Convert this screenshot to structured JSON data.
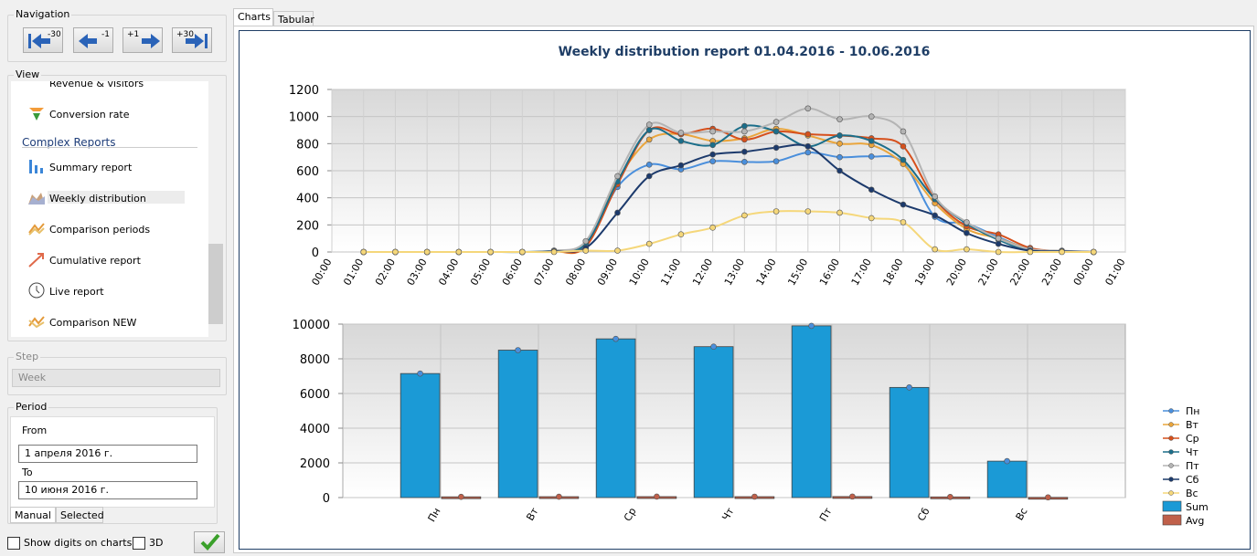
{
  "navigation": {
    "title": "Navigation",
    "buttons": [
      "-30",
      "-1",
      "+1",
      "+30"
    ]
  },
  "view": {
    "title": "View",
    "items": [
      "Revenue & visitors",
      "Conversion rate"
    ],
    "section": "Complex Reports",
    "reports": [
      "Summary report",
      "Weekly distribution",
      "Comparison periods",
      "Cumulative report",
      "Live report",
      "Comparison NEW"
    ]
  },
  "step": {
    "title": "Step",
    "value": "Week"
  },
  "period": {
    "title": "Period",
    "from_label": "From",
    "from": "1  апреля   2016 г.",
    "to_label": "To",
    "to": "10  июня    2016 г.",
    "tabs": [
      "Manual",
      "Selected"
    ]
  },
  "options": [
    "Show digits on charts",
    "3D"
  ],
  "tabs": [
    "Charts",
    "Tabular"
  ],
  "chart_data": [
    {
      "type": "line",
      "title": "Weekly distribution report 01.04.2016 - 10.06.2016",
      "categories": [
        "00:00",
        "01:00",
        "02:00",
        "03:00",
        "04:00",
        "05:00",
        "06:00",
        "07:00",
        "08:00",
        "09:00",
        "10:00",
        "11:00",
        "12:00",
        "13:00",
        "14:00",
        "15:00",
        "16:00",
        "17:00",
        "18:00",
        "19:00",
        "20:00",
        "21:00",
        "22:00",
        "23:00",
        "00:00",
        "01:00"
      ],
      "series": [
        {
          "name": "Пн",
          "color": "#4a8fdc",
          "values": [
            null,
            0,
            0,
            0,
            0,
            0,
            0,
            5,
            50,
            480,
            645,
            610,
            670,
            665,
            670,
            735,
            700,
            705,
            660,
            260,
            210,
            110,
            20,
            5,
            0,
            null
          ]
        },
        {
          "name": "Вт",
          "color": "#eaa53c",
          "values": [
            null,
            0,
            0,
            0,
            0,
            0,
            0,
            5,
            40,
            530,
            830,
            870,
            820,
            840,
            910,
            860,
            800,
            790,
            650,
            360,
            170,
            100,
            20,
            5,
            0,
            null
          ]
        },
        {
          "name": "Ср",
          "color": "#d6501c",
          "values": [
            null,
            0,
            0,
            0,
            0,
            0,
            0,
            5,
            40,
            500,
            900,
            870,
            910,
            830,
            890,
            870,
            860,
            840,
            780,
            390,
            190,
            130,
            30,
            5,
            0,
            null
          ]
        },
        {
          "name": "Чт",
          "color": "#1b6e8a",
          "values": [
            null,
            0,
            0,
            0,
            0,
            0,
            0,
            10,
            60,
            520,
            900,
            820,
            790,
            930,
            890,
            780,
            860,
            820,
            680,
            390,
            210,
            90,
            10,
            5,
            0,
            null
          ]
        },
        {
          "name": "Пт",
          "color": "#b4b4b4",
          "values": [
            null,
            0,
            0,
            0,
            0,
            0,
            0,
            10,
            80,
            560,
            940,
            880,
            890,
            890,
            960,
            1060,
            980,
            1000,
            890,
            410,
            220,
            100,
            20,
            10,
            0,
            null
          ]
        },
        {
          "name": "Сб",
          "color": "#1c3a6c",
          "values": [
            null,
            0,
            0,
            0,
            0,
            0,
            0,
            5,
            30,
            290,
            560,
            640,
            720,
            740,
            770,
            780,
            600,
            460,
            350,
            270,
            140,
            60,
            10,
            5,
            0,
            null
          ]
        },
        {
          "name": "Вс",
          "color": "#f5d77a",
          "values": [
            null,
            0,
            0,
            0,
            0,
            0,
            0,
            0,
            10,
            10,
            60,
            130,
            180,
            270,
            300,
            300,
            290,
            250,
            220,
            20,
            20,
            0,
            0,
            0,
            0,
            null
          ]
        }
      ],
      "ylim": [
        0,
        1200
      ],
      "yticks": [
        0,
        200,
        400,
        600,
        800,
        1000,
        1200
      ],
      "grid": true
    },
    {
      "type": "bar",
      "categories": [
        "Пн",
        "Вт",
        "Ср",
        "Чт",
        "Пт",
        "Сб",
        "Вс"
      ],
      "series": [
        {
          "name": "Sum",
          "color": "#1b9ad6",
          "values": [
            7150,
            8500,
            9150,
            8700,
            9900,
            6350,
            2100
          ]
        },
        {
          "name": "Avg",
          "color": "#c0604a",
          "values": [
            43,
            51,
            54,
            52,
            59,
            38,
            13
          ]
        }
      ],
      "ylim": [
        0,
        10000
      ],
      "yticks": [
        0,
        2000,
        4000,
        6000,
        8000,
        10000
      ],
      "grid": true,
      "legend": "right"
    }
  ]
}
